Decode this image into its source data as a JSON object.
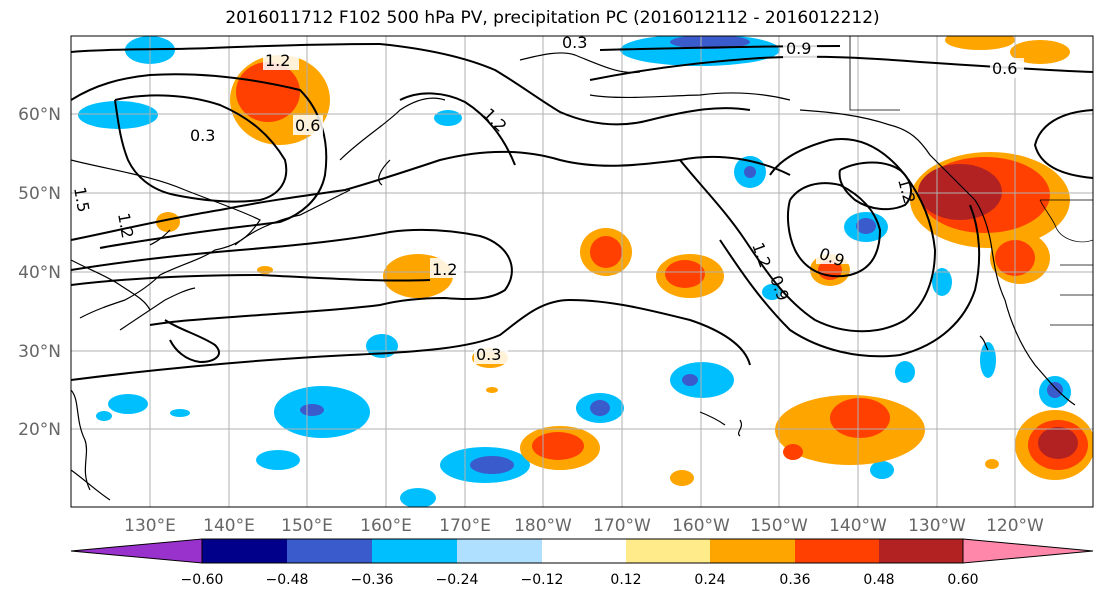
{
  "title": "2016011712 F102 500 hPa PV, precipitation PC (2016012112 - 2016012212)",
  "lat_labels": [
    "60°N",
    "50°N",
    "40°N",
    "30°N",
    "20°N"
  ],
  "lon_labels": [
    "130°E",
    "140°E",
    "150°E",
    "160°E",
    "170°E",
    "180°W",
    "170°W",
    "160°W",
    "150°W",
    "140°W",
    "130°W",
    "120°W"
  ],
  "colorbar": {
    "ticks": [
      "−0.60",
      "−0.48",
      "−0.36",
      "−0.24",
      "−0.12",
      "0.12",
      "0.24",
      "0.36",
      "0.48",
      "0.60"
    ],
    "colors": [
      "#9932cc",
      "#00008b",
      "#3a5bcc",
      "#00bfff",
      "#b0e0ff",
      "#ffffff",
      "#ffeb8a",
      "#ffa500",
      "#ff4000",
      "#b22222",
      "#ff88aa"
    ]
  },
  "contour_labels": [
    "1.2",
    "0.6",
    "0.3",
    "1.2",
    "1.5",
    "1.2",
    "1.2",
    "0.3",
    "0.9",
    "0.6",
    "0.3",
    "1.2",
    "0.9",
    "1.2",
    "0.9"
  ],
  "colors": {
    "blue": "#00bfff",
    "dark_blue": "#3a5bcc",
    "navy": "#00008b",
    "orange": "#ffa500",
    "red": "#ff4000",
    "dark_red": "#b22222"
  }
}
